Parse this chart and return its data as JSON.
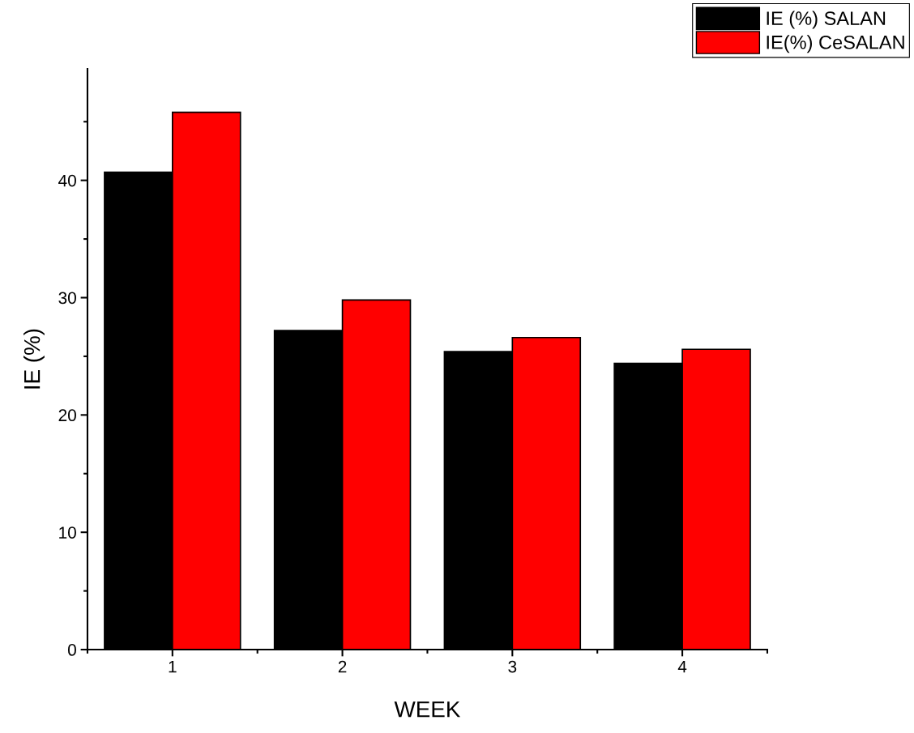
{
  "chart_data": {
    "type": "bar",
    "xlabel": "WEEK",
    "ylabel": "IE (%)",
    "categories": [
      "1",
      "2",
      "3",
      "4"
    ],
    "series": [
      {
        "name": "IE (%) SALAN",
        "color": "#000000",
        "values": [
          40.7,
          27.2,
          25.4,
          24.4
        ]
      },
      {
        "name": "IE(%) CeSALAN",
        "color": "#ff0000",
        "values": [
          45.8,
          29.8,
          26.6,
          25.6
        ]
      }
    ],
    "ylim": [
      0,
      49.5
    ],
    "yticks": [
      0,
      10,
      20,
      30,
      40
    ],
    "grid": false,
    "legend": "top right"
  }
}
